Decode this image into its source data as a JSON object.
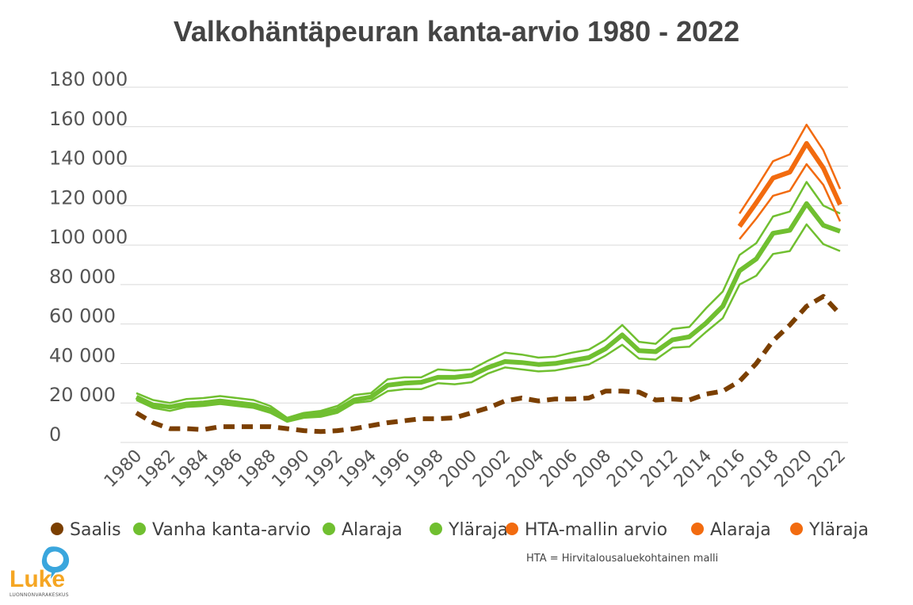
{
  "chart_data": {
    "type": "line",
    "title": "Valkohäntäpeuran kanta-arvio 1980 - 2022",
    "xlabel": "",
    "ylabel": "",
    "ylim": [
      0,
      180000
    ],
    "yticks": [
      0,
      20000,
      40000,
      60000,
      80000,
      100000,
      120000,
      140000,
      160000,
      180000
    ],
    "ytick_labels": [
      "0",
      "20 000",
      "40 000",
      "60 000",
      "80 000",
      "100 000",
      "120 000",
      "140 000",
      "160 000",
      "180 000"
    ],
    "xlim": [
      1980,
      2022
    ],
    "xtick_labels": [
      "1980",
      "1982",
      "1984",
      "1986",
      "1988",
      "1990",
      "1992",
      "1994",
      "1996",
      "1998",
      "2000",
      "2002",
      "2004",
      "2006",
      "2008",
      "2010",
      "2012",
      "2014",
      "2016",
      "2018",
      "2020",
      "2022"
    ],
    "grid": true,
    "legend_position": "bottom",
    "series": [
      {
        "name": "Saalis",
        "color": "#7b3f00",
        "style": "dashed",
        "x": [
          1980,
          1981,
          1982,
          1983,
          1984,
          1985,
          1986,
          1987,
          1988,
          1989,
          1990,
          1991,
          1992,
          1993,
          1994,
          1995,
          1996,
          1997,
          1998,
          1999,
          2000,
          2001,
          2002,
          2003,
          2004,
          2005,
          2006,
          2007,
          2008,
          2009,
          2010,
          2011,
          2012,
          2013,
          2014,
          2015,
          2016,
          2017,
          2018,
          2019,
          2020,
          2021,
          2022
        ],
        "values": [
          15000,
          10000,
          7000,
          7000,
          6500,
          8000,
          8000,
          8000,
          8000,
          7000,
          6000,
          5500,
          6000,
          7000,
          8500,
          10000,
          11000,
          12000,
          12000,
          12500,
          15000,
          17500,
          21000,
          22500,
          21000,
          22000,
          22000,
          22500,
          26000,
          26000,
          25500,
          21500,
          22000,
          21500,
          24500,
          26000,
          31000,
          40000,
          51500,
          59500,
          69000,
          74000,
          65000
        ]
      },
      {
        "name": "Vanha kanta-arvio",
        "color": "#70bf30",
        "style": "thick",
        "x": [
          1980,
          1981,
          1982,
          1983,
          1984,
          1985,
          1986,
          1987,
          1988,
          1989,
          1990,
          1991,
          1992,
          1993,
          1994,
          1995,
          1996,
          1997,
          1998,
          1999,
          2000,
          2001,
          2002,
          2003,
          2004,
          2005,
          2006,
          2007,
          2008,
          2009,
          2010,
          2011,
          2012,
          2013,
          2014,
          2015,
          2016,
          2017,
          2018,
          2019,
          2020,
          2021,
          2022
        ],
        "values": [
          23000,
          19000,
          18000,
          19500,
          20000,
          21000,
          20000,
          19000,
          16500,
          11500,
          13500,
          14500,
          16500,
          21500,
          23000,
          29000,
          30000,
          30500,
          33000,
          33000,
          34000,
          38000,
          41000,
          40500,
          39500,
          40000,
          41500,
          43000,
          47500,
          54500,
          46500,
          46000,
          52000,
          53500,
          60500,
          69000,
          87000,
          93000,
          106000,
          107500,
          121000,
          110000,
          107000
        ]
      },
      {
        "name": "Alaraja",
        "color": "#70bf30",
        "style": "thin",
        "x": [
          1980,
          1981,
          1982,
          1983,
          1984,
          1985,
          1986,
          1987,
          1988,
          1989,
          1990,
          1991,
          1992,
          1993,
          1994,
          1995,
          1996,
          1997,
          1998,
          1999,
          2000,
          2001,
          2002,
          2003,
          2004,
          2005,
          2006,
          2007,
          2008,
          2009,
          2010,
          2011,
          2012,
          2013,
          2014,
          2015,
          2016,
          2017,
          2018,
          2019,
          2020,
          2021,
          2022
        ],
        "values": [
          21500,
          17500,
          16000,
          18000,
          18500,
          19500,
          18500,
          17500,
          15000,
          10500,
          12500,
          13000,
          15000,
          20000,
          21000,
          26000,
          27000,
          27000,
          30000,
          29500,
          30500,
          35000,
          38000,
          37000,
          36000,
          36500,
          38000,
          39500,
          44000,
          49500,
          42500,
          42000,
          48000,
          48500,
          56000,
          63000,
          80000,
          84500,
          95500,
          97000,
          110500,
          100500,
          97000
        ]
      },
      {
        "name": "Yläraja",
        "color": "#70bf30",
        "style": "thin",
        "x": [
          1980,
          1981,
          1982,
          1983,
          1984,
          1985,
          1986,
          1987,
          1988,
          1989,
          1990,
          1991,
          1992,
          1993,
          1994,
          1995,
          1996,
          1997,
          1998,
          1999,
          2000,
          2001,
          2002,
          2003,
          2004,
          2005,
          2006,
          2007,
          2008,
          2009,
          2010,
          2011,
          2012,
          2013,
          2014,
          2015,
          2016,
          2017,
          2018,
          2019,
          2020,
          2021,
          2022
        ],
        "values": [
          25000,
          21500,
          20000,
          22000,
          22500,
          23500,
          22500,
          21500,
          18500,
          12500,
          15000,
          16000,
          18500,
          24000,
          25000,
          32000,
          33000,
          33000,
          37000,
          36500,
          37000,
          41500,
          45500,
          44500,
          43000,
          43500,
          45500,
          47000,
          52000,
          59500,
          51000,
          50000,
          57500,
          58500,
          68000,
          76500,
          95000,
          101000,
          114500,
          117000,
          132000,
          120000,
          116000
        ]
      },
      {
        "name": "HTA-mallin arvio",
        "color": "#f26b0f",
        "style": "thick",
        "x": [
          2016,
          2017,
          2018,
          2019,
          2020,
          2021,
          2022
        ],
        "values": [
          109500,
          121500,
          134000,
          137000,
          151500,
          139000,
          120500
        ]
      },
      {
        "name": "Alaraja",
        "color": "#f26b0f",
        "style": "thin",
        "x": [
          2016,
          2017,
          2018,
          2019,
          2020,
          2021,
          2022
        ],
        "values": [
          103000,
          113500,
          125000,
          127500,
          141000,
          130500,
          112000
        ]
      },
      {
        "name": "Yläraja",
        "color": "#f26b0f",
        "style": "thin",
        "x": [
          2016,
          2017,
          2018,
          2019,
          2020,
          2021,
          2022
        ],
        "values": [
          116000,
          129000,
          142500,
          146000,
          161000,
          148000,
          128500
        ]
      }
    ]
  },
  "legend": [
    {
      "label": "Saalis",
      "color": "#7b3f00"
    },
    {
      "label": "Vanha kanta-arvio",
      "color": "#70bf30"
    },
    {
      "label": "Alaraja",
      "color": "#70bf30"
    },
    {
      "label": "Yläraja",
      "color": "#70bf30"
    },
    {
      "label": "HTA-mallin arvio",
      "color": "#f26b0f"
    },
    {
      "label": "Alaraja",
      "color": "#f26b0f"
    },
    {
      "label": "Yläraja",
      "color": "#f26b0f"
    }
  ],
  "note": "HTA = Hirvitalousaluekohtainen malli",
  "logo": {
    "word": "Luke",
    "subtitle": "LUONNONVARAKESKUS",
    "icon": "speech-bubble-icon",
    "color": "#f5a623",
    "accent": "#3aa6dd"
  }
}
